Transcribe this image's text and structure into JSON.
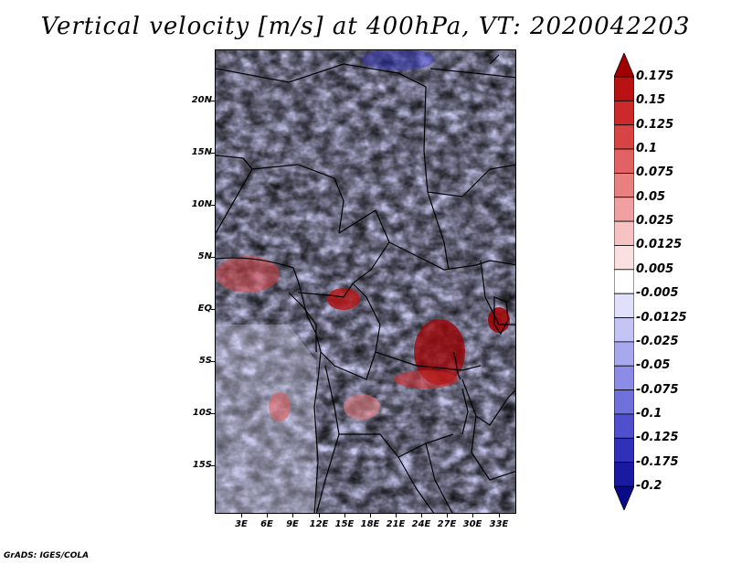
{
  "title": "Vertical velocity [m/s] at 400hPa, VT: 2020042203",
  "footer": "GrADS: IGES/COLA",
  "lat_labels": [
    "20N",
    "15N",
    "10N",
    "5N",
    "EQ",
    "5S",
    "10S",
    "15S"
  ],
  "lon_labels": [
    "3E",
    "6E",
    "9E",
    "12E",
    "15E",
    "18E",
    "21E",
    "24E",
    "27E",
    "30E",
    "33E"
  ],
  "colorbar": {
    "labels": [
      "0.175",
      "0.15",
      "0.125",
      "0.1",
      "0.075",
      "0.05",
      "0.025",
      "0.0125",
      "0.005",
      "-0.005",
      "-0.0125",
      "-0.025",
      "-0.05",
      "-0.075",
      "-0.1",
      "-0.125",
      "-0.175",
      "-0.2"
    ],
    "colors": [
      "#a00000",
      "#b81212",
      "#cc2a2a",
      "#d84444",
      "#e06262",
      "#e88080",
      "#f0a0a0",
      "#f6c2c2",
      "#fbe0e0",
      "#ffffff",
      "#e0e0fb",
      "#c4c4f4",
      "#a8a8ee",
      "#8c8ce6",
      "#7070dc",
      "#5050cc",
      "#3030b8",
      "#1a1aa0",
      "#0a0a88"
    ]
  },
  "colors": {
    "positive_max": "#a00000",
    "negative_max": "#0a0a88",
    "border": "#000000"
  }
}
